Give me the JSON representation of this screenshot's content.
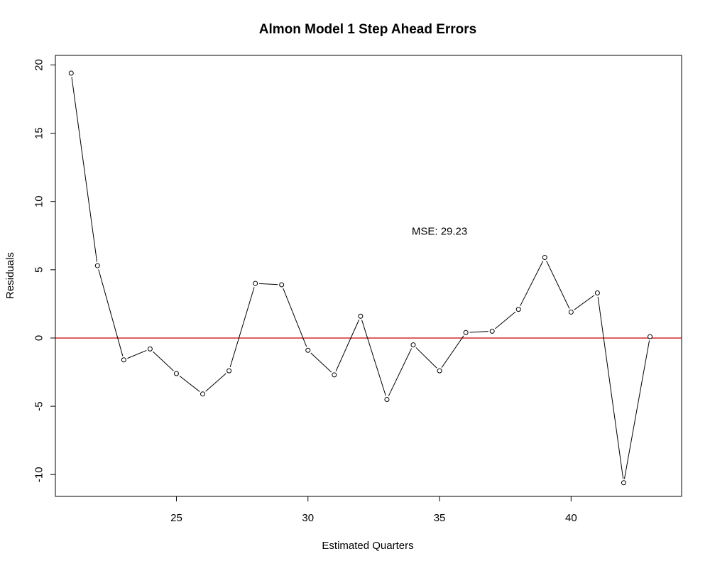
{
  "chart_data": {
    "type": "line",
    "title": "Almon Model 1 Step Ahead Errors",
    "xlabel": "Estimated Quarters",
    "ylabel": "Residuals",
    "xlim": [
      20.4,
      44.2
    ],
    "ylim": [
      -11.6,
      20.7
    ],
    "x_ticks": [
      25,
      30,
      35,
      40
    ],
    "x_tick_labels": [
      "25",
      "30",
      "35",
      "40"
    ],
    "y_ticks": [
      -10,
      -5,
      0,
      5,
      10,
      15,
      20
    ],
    "y_tick_labels": [
      "-10",
      "-5",
      "0",
      "5",
      "10",
      "15",
      "20"
    ],
    "grid": false,
    "series": [
      {
        "color": "#000000",
        "marker": "open-circle",
        "x": [
          21,
          22,
          23,
          24,
          25,
          26,
          27,
          28,
          29,
          30,
          31,
          32,
          33,
          34,
          35,
          36,
          37,
          38,
          39,
          40,
          41,
          42,
          43
        ],
        "values": [
          19.4,
          5.3,
          -1.6,
          -0.8,
          -2.6,
          -4.1,
          -2.4,
          4.0,
          3.9,
          -0.9,
          -2.7,
          1.6,
          -4.5,
          -0.5,
          -2.4,
          0.4,
          0.5,
          2.1,
          5.9,
          1.9,
          3.3,
          -10.6,
          0.1
        ]
      }
    ],
    "reference_line": {
      "y": 0,
      "color": "#cc0000"
    },
    "annotations": [
      {
        "text": "MSE: 29.23",
        "x": 35.0,
        "y": 7.8
      }
    ]
  }
}
